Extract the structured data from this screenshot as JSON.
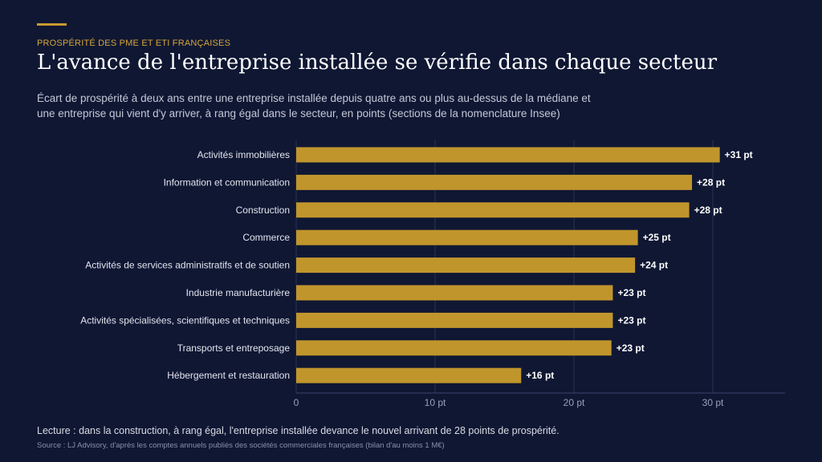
{
  "header": {
    "eyebrow": "PROSPÉRITÉ DES PME ET ETI FRANÇAISES",
    "title": "L'avance de l'entreprise installée se vérifie dans chaque secteur",
    "subtitle": "Écart de prospérité à deux ans entre une entreprise installée depuis quatre ans ou plus au-dessus de la médiane et une entreprise qui vient d'y arriver, à rang égal dans le secteur, en points (sections de la nomenclature Insee)"
  },
  "footer": {
    "note": "Lecture : dans la construction, à rang égal, l'entreprise installée devance le nouvel arrivant de 28 points de prospérité.",
    "source": "Source : LJ Advisory, d'après les comptes annuels publiés des sociétés commerciales françaises (bilan d'au moins 1 M€)"
  },
  "colors": {
    "background": "#0f1733",
    "bar": "#c0962c",
    "accent": "#c99a2e",
    "grid": "#2a3356"
  },
  "chart_data": {
    "type": "bar",
    "orientation": "horizontal",
    "categories": [
      "Activités immobilières",
      "Information et communication",
      "Construction",
      "Commerce",
      "Activités de services administratifs et de soutien",
      "Industrie manufacturière",
      "Activités spécialisées, scientifiques et techniques",
      "Transports et entreposage",
      "Hébergement et restauration"
    ],
    "values": [
      30.5,
      28.5,
      28.3,
      24.6,
      24.4,
      22.8,
      22.8,
      22.7,
      16.2
    ],
    "data_labels": [
      "+31 pt",
      "+28 pt",
      "+28 pt",
      "+25 pt",
      "+24 pt",
      "+23 pt",
      "+23 pt",
      "+23 pt",
      "+16 pt"
    ],
    "x_ticks": [
      0,
      10,
      20,
      30
    ],
    "x_tick_labels": [
      "0",
      "10 pt",
      "20 pt",
      "30 pt"
    ],
    "xlim": [
      0,
      35
    ],
    "grid": true,
    "legend": "none"
  }
}
